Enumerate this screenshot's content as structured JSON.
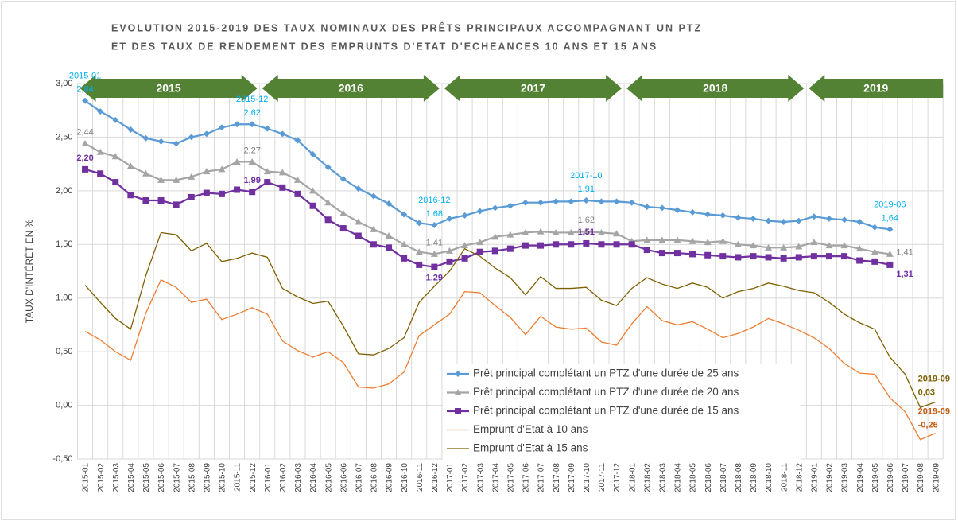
{
  "chart_data": {
    "type": "line",
    "title": [
      "EVOLUTION 2015-2019 DES TAUX NOMINAUX DES PRÊTS PRINCIPAUX ACCOMPAGNANT UN PTZ",
      "ET DES TAUX DE RENDEMENT DES EMPRUNTS D'ETAT D'ECHEANCES 10 ANS ET 15 ANS"
    ],
    "y_label": "TAUX D'INTÉRÊT EN %",
    "periods": [
      "2015",
      "2016",
      "2017",
      "2018",
      "2019"
    ],
    "categories": [
      "2015-01",
      "2015-02",
      "2015-03",
      "2015-04",
      "2015-05",
      "2015-06",
      "2015-07",
      "2015-08",
      "2015-09",
      "2015-10",
      "2015-11",
      "2015-12",
      "2016-01",
      "2016-02",
      "2016-03",
      "2016-04",
      "2016-05",
      "2016-06",
      "2016-07",
      "2016-08",
      "2016-09",
      "2016-10",
      "2016-11",
      "2016-12",
      "2017-01",
      "2017-02",
      "2017-03",
      "2017-04",
      "2017-05",
      "2017-06",
      "2017-07",
      "2017-08",
      "2017-09",
      "2017-10",
      "2017-11",
      "2017-12",
      "2018-01",
      "2018-02",
      "2018-03",
      "2018-04",
      "2018-05",
      "2018-06",
      "2018-07",
      "2018-08",
      "2018-09",
      "2018-10",
      "2018-11",
      "2018-12",
      "2019-01",
      "2019-02",
      "2019-03",
      "2019-04",
      "2019-05",
      "2019-06",
      "2019-07",
      "2019-08",
      "2019-09"
    ],
    "series": [
      {
        "name": "Prêt principal complétant un PTZ d'une durée de 25 ans",
        "color": "#5b9bd5",
        "label_color": "#00b0f0",
        "marker": "diamond",
        "label_dates": true,
        "values": [
          2.84,
          2.74,
          2.66,
          2.57,
          2.49,
          2.46,
          2.44,
          2.5,
          2.53,
          2.59,
          2.62,
          2.62,
          2.58,
          2.53,
          2.47,
          2.34,
          2.22,
          2.11,
          2.02,
          1.95,
          1.88,
          1.78,
          1.7,
          1.68,
          1.74,
          1.77,
          1.81,
          1.84,
          1.86,
          1.89,
          1.89,
          1.9,
          1.9,
          1.91,
          1.9,
          1.9,
          1.89,
          1.85,
          1.84,
          1.82,
          1.8,
          1.78,
          1.77,
          1.75,
          1.74,
          1.72,
          1.71,
          1.72,
          1.76,
          1.74,
          1.73,
          1.71,
          1.66,
          1.64,
          null,
          null,
          null
        ],
        "value_labels": [
          "2,84",
          null,
          null,
          null,
          null,
          null,
          null,
          null,
          null,
          null,
          null,
          "2,62",
          null,
          null,
          null,
          null,
          null,
          null,
          null,
          null,
          null,
          null,
          null,
          "1,68",
          null,
          null,
          null,
          null,
          null,
          null,
          null,
          null,
          null,
          "1,91",
          null,
          null,
          null,
          null,
          null,
          null,
          null,
          null,
          null,
          null,
          null,
          null,
          null,
          null,
          null,
          null,
          null,
          null,
          null,
          "1,64",
          null,
          null,
          null
        ]
      },
      {
        "name": "Prêt principal complétant un PTZ d'une durée de 20 ans",
        "color": "#a5a5a5",
        "label_color": "#7f7f7f",
        "marker": "triangle",
        "values": [
          2.44,
          2.36,
          2.32,
          2.23,
          2.16,
          2.1,
          2.1,
          2.13,
          2.18,
          2.2,
          2.27,
          2.27,
          2.18,
          2.17,
          2.1,
          2.0,
          1.89,
          1.79,
          1.71,
          1.64,
          1.58,
          1.5,
          1.43,
          1.41,
          1.44,
          1.49,
          1.52,
          1.57,
          1.59,
          1.61,
          1.62,
          1.61,
          1.61,
          1.62,
          1.61,
          1.6,
          1.53,
          1.54,
          1.54,
          1.54,
          1.53,
          1.52,
          1.53,
          1.5,
          1.49,
          1.47,
          1.47,
          1.48,
          1.52,
          1.49,
          1.49,
          1.46,
          1.43,
          1.41,
          null,
          null,
          null
        ],
        "value_labels": [
          "2,44",
          null,
          null,
          null,
          null,
          null,
          null,
          null,
          null,
          null,
          null,
          "2,27",
          null,
          null,
          null,
          null,
          null,
          null,
          null,
          null,
          null,
          null,
          null,
          "1,41",
          null,
          null,
          null,
          null,
          null,
          null,
          null,
          null,
          null,
          "1,62",
          null,
          null,
          null,
          null,
          null,
          null,
          null,
          null,
          null,
          null,
          null,
          null,
          null,
          null,
          null,
          null,
          null,
          null,
          null,
          "1,41",
          null,
          null,
          null
        ]
      },
      {
        "name": "Prêt principal complétant un PTZ d'une durée de 15 ans",
        "color": "#7030a0",
        "label_color": "#7030a0",
        "marker": "square",
        "values": [
          2.2,
          2.16,
          2.08,
          1.96,
          1.91,
          1.91,
          1.87,
          1.94,
          1.98,
          1.97,
          2.01,
          1.99,
          2.08,
          2.03,
          1.97,
          1.86,
          1.73,
          1.65,
          1.58,
          1.5,
          1.47,
          1.37,
          1.31,
          1.29,
          1.34,
          1.37,
          1.43,
          1.44,
          1.46,
          1.49,
          1.49,
          1.5,
          1.5,
          1.51,
          1.5,
          1.5,
          1.5,
          1.45,
          1.42,
          1.42,
          1.41,
          1.4,
          1.39,
          1.38,
          1.39,
          1.38,
          1.37,
          1.38,
          1.39,
          1.39,
          1.39,
          1.35,
          1.34,
          1.31,
          null,
          null,
          null
        ],
        "value_labels": [
          "2,20",
          null,
          null,
          null,
          null,
          null,
          null,
          null,
          null,
          null,
          null,
          "1,99",
          null,
          null,
          null,
          null,
          null,
          null,
          null,
          null,
          null,
          null,
          null,
          "1,29",
          null,
          null,
          null,
          null,
          null,
          null,
          null,
          null,
          null,
          "1,51",
          null,
          null,
          null,
          null,
          null,
          null,
          null,
          null,
          null,
          null,
          null,
          null,
          null,
          null,
          null,
          null,
          null,
          null,
          null,
          "1,31",
          null,
          null,
          null
        ]
      },
      {
        "name": "Emprunt d'Etat à 10 ans",
        "color": "#ed7d31",
        "label_color": "#c55a11",
        "label_dates": true,
        "values": [
          0.69,
          0.61,
          0.5,
          0.42,
          0.86,
          1.17,
          1.1,
          0.96,
          0.99,
          0.8,
          0.85,
          0.91,
          0.85,
          0.6,
          0.51,
          0.45,
          0.5,
          0.4,
          0.17,
          0.16,
          0.2,
          0.31,
          0.65,
          0.75,
          0.85,
          1.06,
          1.05,
          0.93,
          0.82,
          0.66,
          0.83,
          0.73,
          0.71,
          0.72,
          0.59,
          0.56,
          0.76,
          0.92,
          0.79,
          0.75,
          0.78,
          0.71,
          0.63,
          0.67,
          0.73,
          0.81,
          0.76,
          0.7,
          0.63,
          0.53,
          0.39,
          0.3,
          0.29,
          0.07,
          -0.06,
          -0.32,
          -0.26
        ],
        "value_labels": [
          null,
          null,
          null,
          null,
          null,
          null,
          null,
          null,
          null,
          null,
          null,
          null,
          null,
          null,
          null,
          null,
          null,
          null,
          null,
          null,
          null,
          null,
          null,
          null,
          null,
          null,
          null,
          null,
          null,
          null,
          null,
          null,
          null,
          null,
          null,
          null,
          null,
          null,
          null,
          null,
          null,
          null,
          null,
          null,
          null,
          null,
          null,
          null,
          null,
          null,
          null,
          null,
          null,
          null,
          null,
          null,
          "-0,26"
        ]
      },
      {
        "name": "Emprunt d'Etat à 15 ans",
        "color": "#7f6000",
        "label_color": "#7f6000",
        "label_dates": true,
        "values": [
          1.12,
          0.96,
          0.81,
          0.71,
          1.21,
          1.61,
          1.59,
          1.44,
          1.51,
          1.34,
          1.37,
          1.42,
          1.38,
          1.09,
          1.01,
          0.95,
          0.97,
          0.74,
          0.48,
          0.47,
          0.53,
          0.63,
          0.96,
          1.11,
          1.25,
          1.46,
          1.39,
          1.28,
          1.19,
          1.03,
          1.2,
          1.09,
          1.09,
          1.1,
          0.98,
          0.93,
          1.09,
          1.19,
          1.13,
          1.09,
          1.14,
          1.1,
          1.0,
          1.06,
          1.09,
          1.14,
          1.11,
          1.07,
          1.05,
          0.96,
          0.85,
          0.77,
          0.71,
          0.45,
          0.29,
          -0.02,
          0.03
        ],
        "value_labels": [
          null,
          null,
          null,
          null,
          null,
          null,
          null,
          null,
          null,
          null,
          null,
          null,
          null,
          null,
          null,
          null,
          null,
          null,
          null,
          null,
          null,
          null,
          null,
          null,
          null,
          null,
          null,
          null,
          null,
          null,
          null,
          null,
          null,
          null,
          null,
          null,
          null,
          null,
          null,
          null,
          null,
          null,
          null,
          null,
          null,
          null,
          null,
          null,
          null,
          null,
          null,
          null,
          null,
          null,
          null,
          null,
          "0,03"
        ]
      }
    ],
    "ylim": [
      -0.5,
      3
    ],
    "yticks": [
      {
        "value": -0.5,
        "label": "-0,50"
      },
      {
        "value": 0,
        "label": "0,00"
      },
      {
        "value": 0.5,
        "label": "0,50"
      },
      {
        "value": 1,
        "label": "1,00"
      },
      {
        "value": 1.5,
        "label": "1,50"
      },
      {
        "value": 2,
        "label": "2,00"
      },
      {
        "value": 2.5,
        "label": "2,50"
      },
      {
        "value": 3,
        "label": "3,00"
      }
    ],
    "grid": true,
    "legend": "lower right",
    "banner_color": "#548235"
  }
}
